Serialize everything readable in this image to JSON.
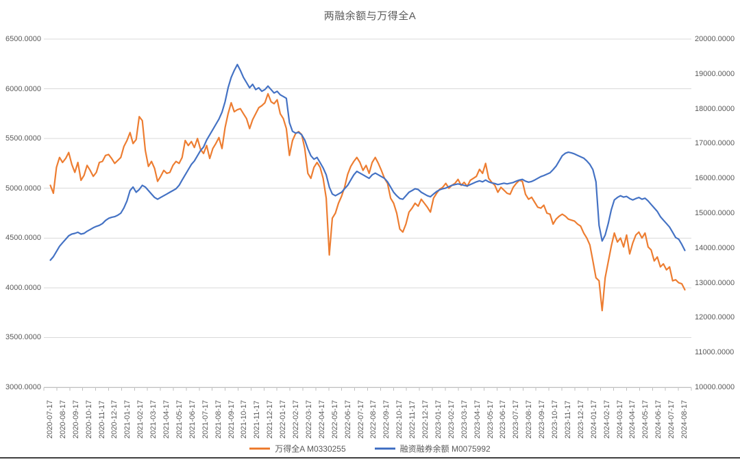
{
  "title": "两融余额与万得全A",
  "legend": {
    "items": [
      {
        "label": "万得全A M0330255",
        "color": "#ED7D31"
      },
      {
        "label": "融资融券余额 M0075992",
        "color": "#4472C4"
      }
    ]
  },
  "left_axis": {
    "labels": [
      "6500.0000",
      "6000.0000",
      "5500.0000",
      "5000.0000",
      "4500.0000",
      "4000.0000",
      "3500.0000",
      "3000.0000"
    ]
  },
  "right_axis": {
    "labels": [
      "20000.0000",
      "19000.0000",
      "18000.0000",
      "17000.0000",
      "16000.0000",
      "15000.0000",
      "14000.0000",
      "13000.0000",
      "12000.0000",
      "11000.0000",
      "10000.0000"
    ]
  },
  "colors": {
    "gridline": "#D9D9D9",
    "axis_line": "#BFBFBF",
    "text": "#595959"
  },
  "chart_data": {
    "type": "line",
    "title": "两融余额与万得全A",
    "grid": true,
    "legend_position": "bottom",
    "left_ylim": [
      3000,
      6500
    ],
    "left_step": 500,
    "right_ylim": [
      10000,
      20000
    ],
    "right_step": 1000,
    "x_tick_labels": [
      "2020-07-17",
      "2020-08-17",
      "2020-09-17",
      "2020-10-17",
      "2020-11-17",
      "2020-12-17",
      "2021-01-17",
      "2021-02-17",
      "2021-03-17",
      "2021-04-17",
      "2021-05-17",
      "2021-06-17",
      "2021-07-17",
      "2021-08-17",
      "2021-09-17",
      "2021-10-17",
      "2021-11-17",
      "2021-12-17",
      "2022-01-17",
      "2022-02-17",
      "2022-03-17",
      "2022-04-17",
      "2022-05-17",
      "2022-06-17",
      "2022-07-17",
      "2022-08-17",
      "2022-09-17",
      "2022-10-17",
      "2022-11-17",
      "2022-12-17",
      "2023-01-17",
      "2023-02-17",
      "2023-03-17",
      "2023-04-17",
      "2023-05-17",
      "2023-06-17",
      "2023-07-17",
      "2023-08-17",
      "2023-09-17",
      "2023-10-17",
      "2023-11-17",
      "2023-12-17",
      "2024-01-17",
      "2024-02-17",
      "2024-03-17",
      "2024-04-17",
      "2024-05-17",
      "2024-06-17",
      "2024-07-17",
      "2024-08-17"
    ],
    "series": [
      {
        "name": "万得全A M0330255",
        "axis": "left",
        "color": "#ED7D31",
        "values": [
          5030,
          4950,
          5210,
          5310,
          5260,
          5300,
          5360,
          5240,
          5160,
          5260,
          5080,
          5130,
          5230,
          5180,
          5120,
          5160,
          5260,
          5270,
          5330,
          5340,
          5300,
          5250,
          5280,
          5310,
          5420,
          5480,
          5560,
          5450,
          5490,
          5720,
          5680,
          5380,
          5220,
          5270,
          5200,
          5070,
          5120,
          5180,
          5150,
          5160,
          5230,
          5270,
          5250,
          5310,
          5480,
          5430,
          5470,
          5410,
          5500,
          5390,
          5350,
          5430,
          5300,
          5400,
          5450,
          5510,
          5400,
          5610,
          5750,
          5860,
          5770,
          5790,
          5800,
          5750,
          5700,
          5600,
          5690,
          5750,
          5810,
          5830,
          5860,
          5950,
          5870,
          5850,
          5890,
          5750,
          5700,
          5600,
          5330,
          5480,
          5550,
          5570,
          5540,
          5400,
          5150,
          5100,
          5210,
          5260,
          5210,
          5100,
          4900,
          4330,
          4700,
          4750,
          4850,
          4920,
          5010,
          5140,
          5220,
          5270,
          5310,
          5260,
          5180,
          5230,
          5150,
          5260,
          5310,
          5250,
          5180,
          5100,
          5050,
          4900,
          4850,
          4750,
          4590,
          4560,
          4640,
          4760,
          4800,
          4850,
          4820,
          4890,
          4850,
          4810,
          4760,
          4900,
          4950,
          4990,
          5010,
          5050,
          5000,
          5030,
          5050,
          5090,
          5030,
          5060,
          5020,
          5080,
          5100,
          5120,
          5190,
          5150,
          5250,
          5100,
          5060,
          5030,
          4960,
          5010,
          4980,
          4950,
          4940,
          5010,
          5050,
          5080,
          5070,
          4940,
          4890,
          4910,
          4860,
          4810,
          4800,
          4830,
          4750,
          4740,
          4640,
          4690,
          4720,
          4740,
          4720,
          4690,
          4680,
          4670,
          4640,
          4620,
          4550,
          4500,
          4430,
          4270,
          4100,
          4070,
          3770,
          4100,
          4260,
          4420,
          4550,
          4460,
          4500,
          4410,
          4530,
          4340,
          4450,
          4530,
          4560,
          4500,
          4550,
          4410,
          4380,
          4270,
          4310,
          4210,
          4240,
          4180,
          4210,
          4070,
          4080,
          4050,
          4040,
          3980
        ]
      },
      {
        "name": "融资融券余额 M0075992",
        "axis": "right",
        "color": "#4472C4",
        "values": [
          13650,
          13750,
          13900,
          14050,
          14150,
          14250,
          14350,
          14400,
          14420,
          14450,
          14400,
          14420,
          14480,
          14530,
          14580,
          14620,
          14650,
          14700,
          14790,
          14850,
          14880,
          14900,
          14940,
          15000,
          15150,
          15350,
          15650,
          15750,
          15600,
          15680,
          15800,
          15750,
          15650,
          15550,
          15450,
          15400,
          15450,
          15500,
          15550,
          15600,
          15650,
          15700,
          15800,
          15950,
          16100,
          16250,
          16400,
          16500,
          16650,
          16800,
          16900,
          17100,
          17250,
          17400,
          17550,
          17700,
          17900,
          18200,
          18600,
          18900,
          19100,
          19270,
          19100,
          18900,
          18750,
          18600,
          18700,
          18550,
          18600,
          18500,
          18550,
          18650,
          18550,
          18450,
          18500,
          18400,
          18350,
          18300,
          17600,
          17350,
          17300,
          17320,
          17250,
          17100,
          16850,
          16650,
          16550,
          16600,
          16450,
          16300,
          16100,
          15750,
          15550,
          15500,
          15550,
          15600,
          15700,
          15800,
          15950,
          16100,
          16200,
          16150,
          16100,
          16050,
          16000,
          16100,
          16150,
          16100,
          16050,
          16000,
          15900,
          15750,
          15600,
          15500,
          15420,
          15400,
          15500,
          15600,
          15650,
          15700,
          15680,
          15600,
          15550,
          15500,
          15470,
          15550,
          15620,
          15670,
          15700,
          15720,
          15760,
          15800,
          15820,
          15840,
          15820,
          15800,
          15780,
          15820,
          15860,
          15900,
          15930,
          15900,
          15950,
          15900,
          15870,
          15850,
          15820,
          15840,
          15860,
          15840,
          15860,
          15880,
          15920,
          15950,
          15970,
          15920,
          15890,
          15910,
          15950,
          16000,
          16050,
          16080,
          16120,
          16160,
          16250,
          16350,
          16500,
          16650,
          16720,
          16750,
          16730,
          16700,
          16660,
          16620,
          16580,
          16500,
          16400,
          16250,
          15900,
          14650,
          14200,
          14370,
          14700,
          15100,
          15380,
          15450,
          15500,
          15460,
          15480,
          15420,
          15380,
          15420,
          15450,
          15400,
          15430,
          15350,
          15250,
          15150,
          15050,
          14900,
          14800,
          14700,
          14600,
          14450,
          14300,
          14250,
          14100,
          13930
        ]
      }
    ]
  }
}
